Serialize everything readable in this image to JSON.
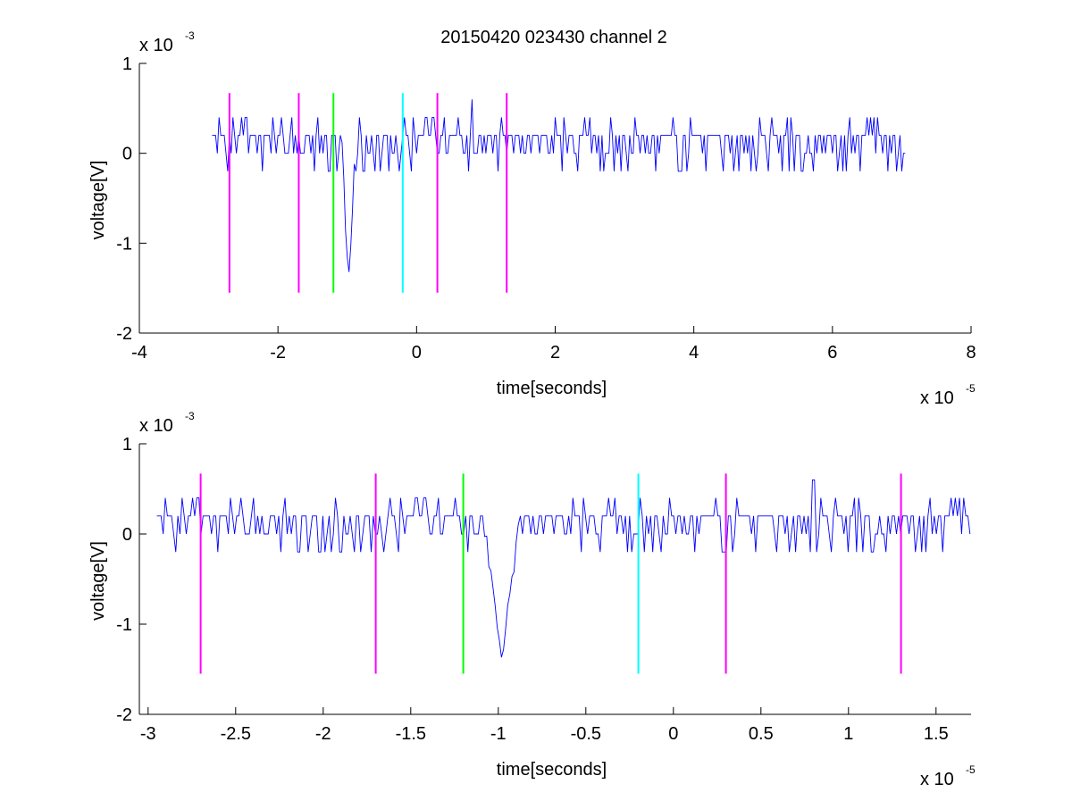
{
  "figure": {
    "title": "20150420 023430 channel 2"
  },
  "chart_data": [
    {
      "type": "line",
      "title": "20150420 023430 channel 2",
      "xlabel": "time[seconds]",
      "ylabel": "voltage[V]",
      "x_multiplier_label": "x 10",
      "x_multiplier_exp": "-5",
      "y_multiplier_label": "x 10",
      "y_multiplier_exp": "-3",
      "xlim": [
        -4,
        8
      ],
      "ylim": [
        -2,
        1
      ],
      "xticks": [
        -4,
        -2,
        0,
        2,
        4,
        6,
        8
      ],
      "xtick_labels": [
        "-4",
        "-2",
        "0",
        "2",
        "4",
        "6",
        "8"
      ],
      "yticks": [
        -2,
        -1,
        0,
        1
      ],
      "ytick_labels": [
        "-2",
        "-1",
        "0",
        "1"
      ],
      "grid": false,
      "signal": {
        "color": "#0000ff",
        "x_start": -2.95,
        "x_end": 7.05,
        "spike_x": -0.98,
        "spike_min": -1.4,
        "max_x": 0.8,
        "max_y": 0.6,
        "noise_levels": [
          -0.2,
          0,
          0.2,
          0.4
        ]
      },
      "markers": [
        {
          "x": -2.7,
          "color": "#ff00ff",
          "ymin": -1.55,
          "ymax": 0.67
        },
        {
          "x": -1.7,
          "color": "#ff00ff",
          "ymin": -1.55,
          "ymax": 0.67
        },
        {
          "x": -1.2,
          "color": "#00ff00",
          "ymin": -1.55,
          "ymax": 0.67
        },
        {
          "x": -0.2,
          "color": "#00ffff",
          "ymin": -1.55,
          "ymax": 0.67
        },
        {
          "x": 0.3,
          "color": "#ff00ff",
          "ymin": -1.55,
          "ymax": 0.67
        },
        {
          "x": 1.3,
          "color": "#ff00ff",
          "ymin": -1.55,
          "ymax": 0.67
        }
      ]
    },
    {
      "type": "line",
      "title": "",
      "xlabel": "time[seconds]",
      "ylabel": "voltage[V]",
      "x_multiplier_label": "x 10",
      "x_multiplier_exp": "-5",
      "y_multiplier_label": "x 10",
      "y_multiplier_exp": "-3",
      "xlim": [
        -3.05,
        1.7
      ],
      "ylim": [
        -2,
        1
      ],
      "xticks": [
        -3,
        -2.5,
        -2,
        -1.5,
        -1,
        -0.5,
        0,
        0.5,
        1,
        1.5
      ],
      "xtick_labels": [
        "-3",
        "-2.5",
        "-2",
        "-1.5",
        "-1",
        "-0.5",
        "0",
        "0.5",
        "1",
        "1.5"
      ],
      "yticks": [
        -2,
        -1,
        0,
        1
      ],
      "ytick_labels": [
        "-2",
        "-1",
        "0",
        "1"
      ],
      "grid": false,
      "signal": {
        "color": "#0000ff",
        "x_start": -2.95,
        "x_end": 1.7,
        "spike_x": -0.98,
        "spike_min": -1.4,
        "max_x": 0.8,
        "max_y": 0.6,
        "noise_levels": [
          -0.2,
          0,
          0.2,
          0.4
        ]
      },
      "markers": [
        {
          "x": -2.7,
          "color": "#ff00ff",
          "ymin": -1.55,
          "ymax": 0.67
        },
        {
          "x": -1.7,
          "color": "#ff00ff",
          "ymin": -1.55,
          "ymax": 0.67
        },
        {
          "x": -1.2,
          "color": "#00ff00",
          "ymin": -1.55,
          "ymax": 0.67
        },
        {
          "x": -0.2,
          "color": "#00ffff",
          "ymin": -1.55,
          "ymax": 0.67
        },
        {
          "x": 0.3,
          "color": "#ff00ff",
          "ymin": -1.55,
          "ymax": 0.67
        },
        {
          "x": 1.3,
          "color": "#ff00ff",
          "ymin": -1.55,
          "ymax": 0.67
        }
      ]
    }
  ]
}
